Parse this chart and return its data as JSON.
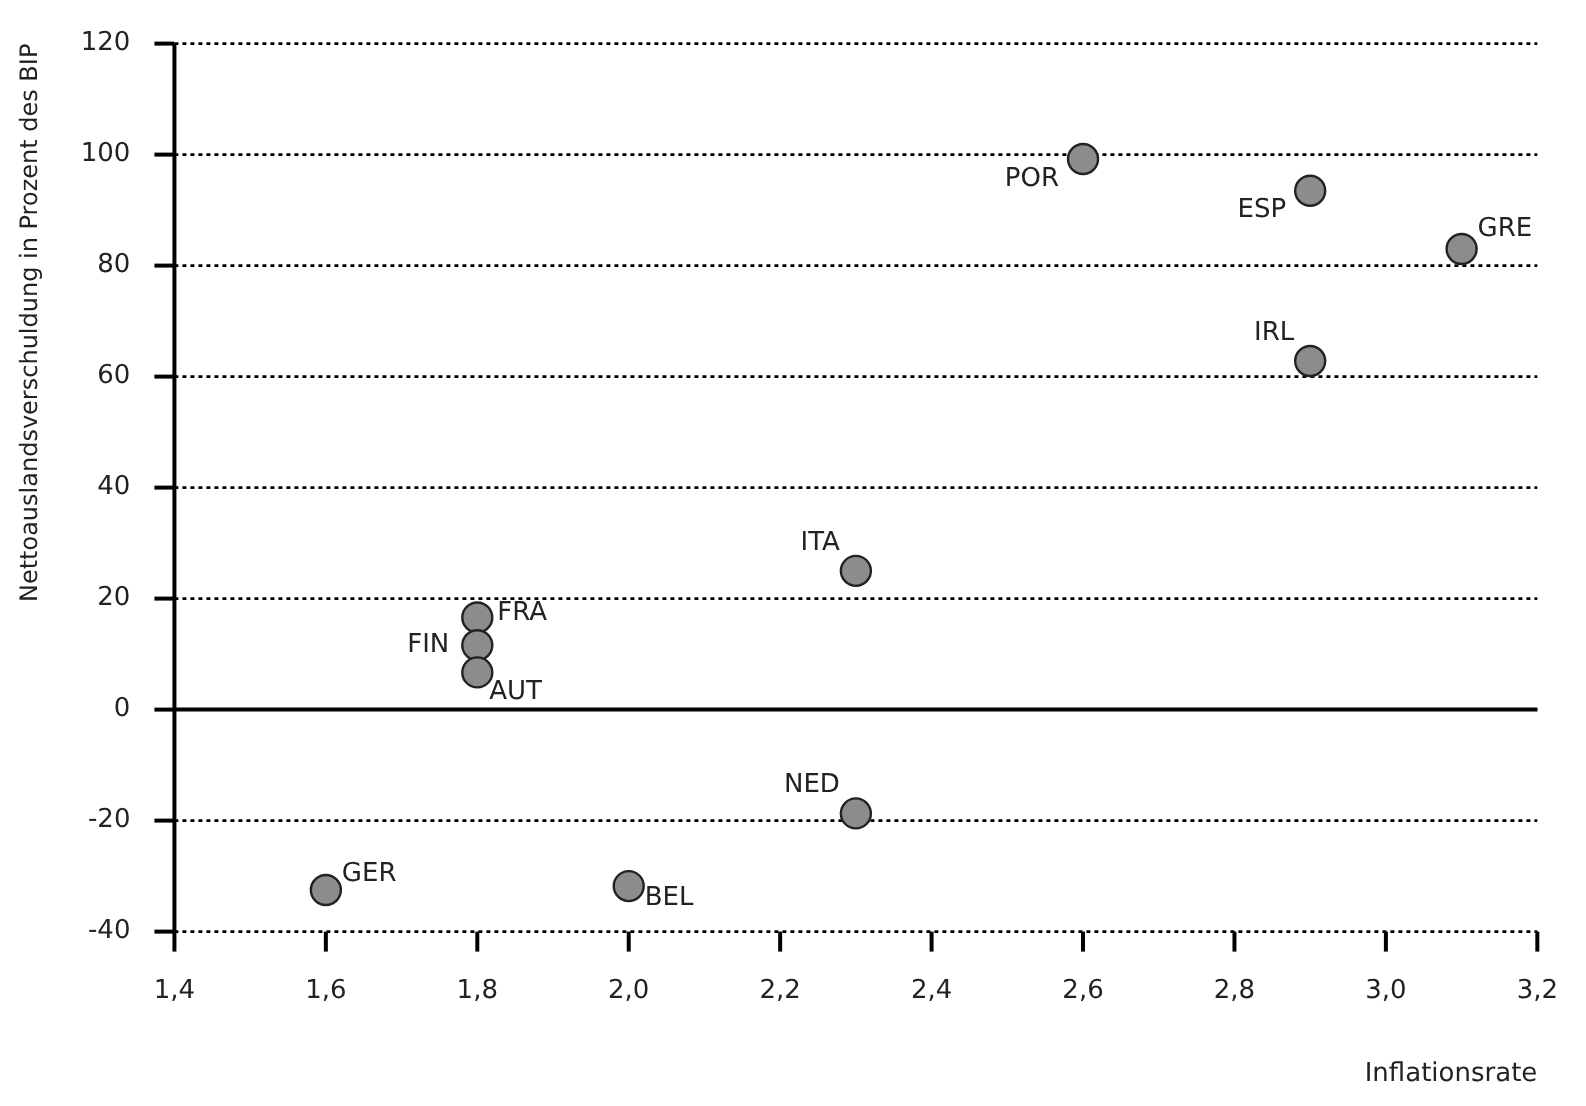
{
  "chart_data": {
    "type": "scatter",
    "xlabel": "Inflationsrate",
    "ylabel": "Nettoauslandsverschuldung in Prozent des BIP",
    "x": [
      2.6,
      2.9,
      3.1,
      2.9,
      2.3,
      1.8,
      1.8,
      1.8,
      2.3,
      1.6,
      2.0
    ],
    "series": [
      {
        "color": "#8c8c8c",
        "values": [
          99.2,
          93.5,
          83,
          62.8,
          25,
          16.6,
          11.6,
          6.7,
          -18.7,
          -32.5,
          -31.8
        ]
      }
    ],
    "xlim": [
      1.4,
      3.2
    ],
    "xticks": [
      {
        "value": 1.4,
        "label": "1,4"
      },
      {
        "value": 1.6,
        "label": "1,6"
      },
      {
        "value": 1.8,
        "label": "1,8"
      },
      {
        "value": 2.0,
        "label": "2,0"
      },
      {
        "value": 2.2,
        "label": "2,2"
      },
      {
        "value": 2.4,
        "label": "2,4"
      },
      {
        "value": 2.6,
        "label": "2,6"
      },
      {
        "value": 2.8,
        "label": "2,8"
      },
      {
        "value": 3.0,
        "label": "3,0"
      },
      {
        "value": 3.2,
        "label": "3,2"
      }
    ],
    "ylim": [
      -40,
      120
    ],
    "yticks": [
      -40,
      -20,
      0,
      20,
      40,
      60,
      80,
      100,
      120
    ],
    "grid": "y",
    "legend": false,
    "marker": "circle",
    "ref_lines": [
      {
        "axis": "y",
        "value": 0,
        "color": "#000000",
        "line_style": "solid"
      }
    ],
    "annotations": [
      {
        "text": "POR",
        "x": 2.6,
        "y": 99.2
      },
      {
        "text": "ESP",
        "x": 2.9,
        "y": 93.5
      },
      {
        "text": "GRE",
        "x": 3.1,
        "y": 83
      },
      {
        "text": "IRL",
        "x": 2.9,
        "y": 62.8
      },
      {
        "text": "ITA",
        "x": 2.3,
        "y": 25
      },
      {
        "text": "FRA",
        "x": 1.8,
        "y": 16.6
      },
      {
        "text": "FIN",
        "x": 1.8,
        "y": 11.6
      },
      {
        "text": "AUT",
        "x": 1.8,
        "y": 6.7
      },
      {
        "text": "NED",
        "x": 2.3,
        "y": -18.7
      },
      {
        "text": "GER",
        "x": 1.6,
        "y": -32.5
      },
      {
        "text": "BEL",
        "x": 2.0,
        "y": -31.8
      }
    ]
  }
}
